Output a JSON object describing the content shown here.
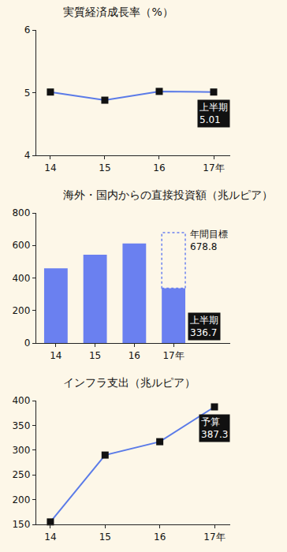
{
  "chart_data": [
    {
      "type": "line",
      "title": "実質経済成長率（%）",
      "categories": [
        "14",
        "15",
        "16",
        "17年"
      ],
      "values": [
        5.01,
        4.88,
        5.02,
        5.01
      ],
      "color": "#5b7be8",
      "marker": "square",
      "ylim": [
        4,
        6
      ],
      "yticks": [
        4,
        5,
        6
      ],
      "grid": false,
      "annotations": [
        {
          "category": "17年",
          "label": "上半期",
          "value": 5.01
        }
      ]
    },
    {
      "type": "bar",
      "title": "海外・国内からの直接投資額（兆ルピア）",
      "categories": [
        "14",
        "15",
        "16",
        "17年"
      ],
      "values": [
        460,
        543,
        612,
        336.7
      ],
      "targets": [
        null,
        null,
        null,
        678.8
      ],
      "color": "#6a80f0",
      "line_style": "dotted",
      "ylim": [
        0,
        800
      ],
      "yticks": [
        0,
        200,
        400,
        600,
        800
      ],
      "grid": false,
      "annotations": [
        {
          "category": "17年",
          "label": "年間目標",
          "value": 678.8
        },
        {
          "category": "17年",
          "label": "上半期",
          "value": 336.7
        }
      ]
    },
    {
      "type": "line",
      "title": "インフラ支出（兆ルピア）",
      "categories": [
        "14",
        "15",
        "16",
        "17年"
      ],
      "values": [
        155,
        290,
        317,
        387.3
      ],
      "color": "#5b7be8",
      "marker": "square",
      "ylim": [
        150,
        400
      ],
      "yticks": [
        150,
        200,
        250,
        300,
        350,
        400
      ],
      "grid": false,
      "annotations": [
        {
          "category": "17年",
          "label": "予算",
          "value": 387.3
        }
      ]
    }
  ]
}
